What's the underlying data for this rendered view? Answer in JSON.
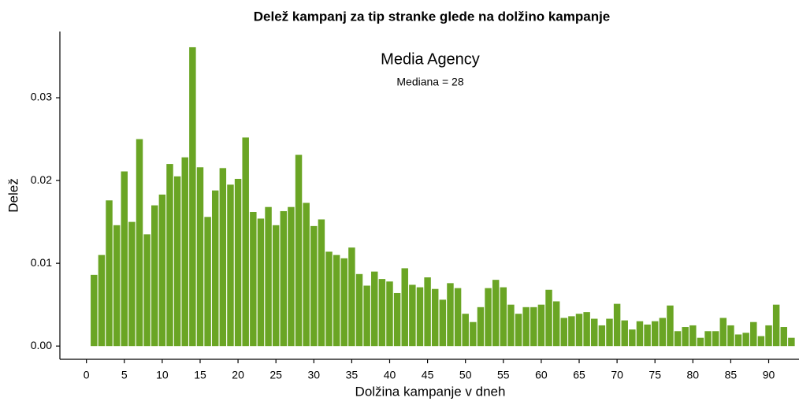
{
  "chart_data": {
    "type": "bar",
    "title": "Delež kampanj za tip stranke glede na dolžino kampanje",
    "subtitle": "Media Agency",
    "annotation": "Mediana = 28",
    "x_label": "Dolžina kampanje v dneh",
    "y_label": "Delež",
    "color": "#6aa524",
    "grid": false,
    "x": [
      1,
      2,
      3,
      4,
      5,
      6,
      7,
      8,
      9,
      10,
      11,
      12,
      13,
      14,
      15,
      16,
      17,
      18,
      19,
      20,
      21,
      22,
      23,
      24,
      25,
      26,
      27,
      28,
      29,
      30,
      31,
      32,
      33,
      34,
      35,
      36,
      37,
      38,
      39,
      40,
      41,
      42,
      43,
      44,
      45,
      46,
      47,
      48,
      49,
      50,
      51,
      52,
      53,
      54,
      55,
      56,
      57,
      58,
      59,
      60,
      61,
      62,
      63,
      64,
      65,
      66,
      67,
      68,
      69,
      70,
      71,
      72,
      73,
      74,
      75,
      76,
      77,
      78,
      79,
      80,
      81,
      82,
      83,
      84,
      85,
      86,
      87,
      88,
      89,
      90,
      91,
      92,
      93
    ],
    "values": [
      0.0086,
      0.011,
      0.0176,
      0.0146,
      0.0211,
      0.015,
      0.025,
      0.0135,
      0.017,
      0.0183,
      0.022,
      0.0205,
      0.0228,
      0.0361,
      0.0216,
      0.0156,
      0.0188,
      0.0215,
      0.0195,
      0.0202,
      0.0252,
      0.0162,
      0.0154,
      0.0168,
      0.0146,
      0.0163,
      0.0168,
      0.0231,
      0.0173,
      0.0145,
      0.0153,
      0.0114,
      0.011,
      0.0106,
      0.0119,
      0.0087,
      0.0073,
      0.009,
      0.0081,
      0.0078,
      0.0064,
      0.0094,
      0.0074,
      0.0071,
      0.0083,
      0.0069,
      0.0056,
      0.0076,
      0.007,
      0.0039,
      0.0029,
      0.0047,
      0.007,
      0.008,
      0.0071,
      0.005,
      0.0039,
      0.0047,
      0.0047,
      0.005,
      0.0068,
      0.0054,
      0.0034,
      0.0036,
      0.0039,
      0.0041,
      0.0033,
      0.0025,
      0.0033,
      0.0051,
      0.0031,
      0.002,
      0.003,
      0.0026,
      0.003,
      0.0034,
      0.0049,
      0.0018,
      0.0023,
      0.0025,
      0.001,
      0.0018,
      0.0018,
      0.0034,
      0.0025,
      0.0014,
      0.0016,
      0.0029,
      0.0012,
      0.0025,
      0.005,
      0.0023,
      0.001
    ],
    "xlim": [
      -3.5,
      94
    ],
    "xticks": [
      0,
      5,
      10,
      15,
      20,
      25,
      30,
      35,
      40,
      45,
      50,
      55,
      60,
      65,
      70,
      75,
      80,
      85,
      90
    ],
    "ylim": [
      -0.0016,
      0.038
    ],
    "yticks": [
      {
        "value": 0,
        "label": "0.00"
      },
      {
        "value": 0.01,
        "label": "0.01"
      },
      {
        "value": 0.02,
        "label": "0.02"
      },
      {
        "value": 0.03,
        "label": "0.03"
      }
    ]
  }
}
